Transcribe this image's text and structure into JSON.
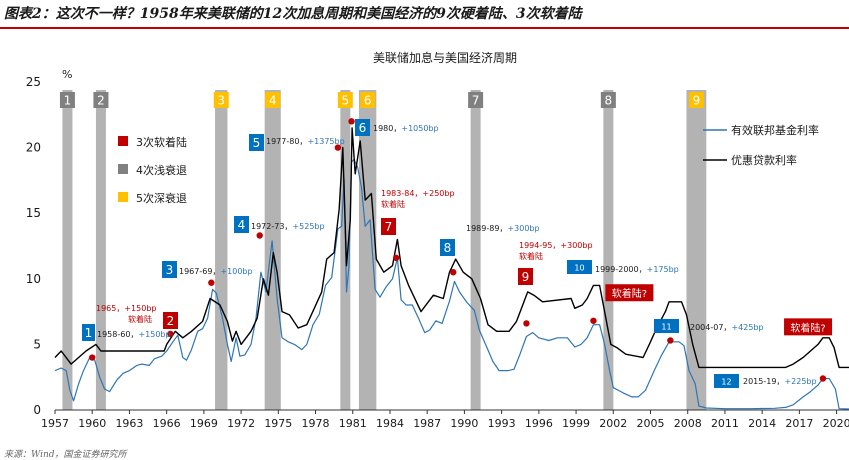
{
  "figure": {
    "title": "图表2：这次不一样？1958年来美联储的12次加息周期和美国经济的9次硬着陆、3次软着陆",
    "source": "来源：Wind，国金证券研究所"
  },
  "colors": {
    "fed_funds": "#2e75b6",
    "prime_rate": "#000000",
    "recession_shallow": "#a6a6a6",
    "recession_deep": "#ffc000",
    "hike_label_bg": "#0070c0",
    "soft_landing_bg": "#c00000",
    "soft_text": "#c00000",
    "bp_text": "#2e75b6",
    "title_rule": "#c00000"
  },
  "chart_data": {
    "type": "line",
    "title": "美联储加息与美国经济周期",
    "ylabel": "%",
    "ylim": [
      0,
      25
    ],
    "xlim": [
      1957,
      2021
    ],
    "yticks": [
      0,
      5,
      10,
      15,
      20,
      25
    ],
    "xticks": [
      1957,
      1960,
      1963,
      1966,
      1969,
      1972,
      1975,
      1978,
      1981,
      1984,
      1987,
      1990,
      1993,
      1996,
      1999,
      2002,
      2005,
      2008,
      2011,
      2014,
      2017,
      2020
    ],
    "grid": false,
    "legend_position": "right",
    "legend_box": [
      {
        "label": "3次软着陆",
        "color": "#c00000"
      },
      {
        "label": "4次浅衰退",
        "color": "#808080"
      },
      {
        "label": "5次深衰退",
        "color": "#ffc000"
      }
    ],
    "series": [
      {
        "name": "有效联邦基金利率",
        "color": "#2e75b6",
        "points": [
          [
            1957.0,
            3.0
          ],
          [
            1957.5,
            3.2
          ],
          [
            1957.9,
            3.0
          ],
          [
            1958.2,
            1.5
          ],
          [
            1958.5,
            0.7
          ],
          [
            1958.9,
            2.0
          ],
          [
            1959.3,
            3.0
          ],
          [
            1959.8,
            4.0
          ],
          [
            1960.2,
            3.8
          ],
          [
            1960.6,
            2.5
          ],
          [
            1961.0,
            1.6
          ],
          [
            1961.4,
            1.4
          ],
          [
            1962.0,
            2.3
          ],
          [
            1962.5,
            2.8
          ],
          [
            1963.0,
            3.0
          ],
          [
            1963.6,
            3.4
          ],
          [
            1964.0,
            3.5
          ],
          [
            1964.6,
            3.4
          ],
          [
            1965.0,
            3.9
          ],
          [
            1965.6,
            4.1
          ],
          [
            1966.0,
            4.5
          ],
          [
            1966.5,
            5.2
          ],
          [
            1966.9,
            5.7
          ],
          [
            1967.3,
            4.0
          ],
          [
            1967.6,
            3.8
          ],
          [
            1968.0,
            4.6
          ],
          [
            1968.5,
            6.0
          ],
          [
            1968.9,
            6.2
          ],
          [
            1969.3,
            7.0
          ],
          [
            1969.7,
            9.2
          ],
          [
            1970.0,
            8.9
          ],
          [
            1970.5,
            7.0
          ],
          [
            1970.9,
            5.0
          ],
          [
            1971.2,
            3.7
          ],
          [
            1971.6,
            5.5
          ],
          [
            1971.9,
            4.1
          ],
          [
            1972.3,
            4.2
          ],
          [
            1972.8,
            5.0
          ],
          [
            1973.2,
            7.0
          ],
          [
            1973.6,
            10.5
          ],
          [
            1974.0,
            9.0
          ],
          [
            1974.5,
            12.9
          ],
          [
            1974.9,
            8.5
          ],
          [
            1975.3,
            5.5
          ],
          [
            1975.8,
            5.2
          ],
          [
            1976.3,
            5.0
          ],
          [
            1976.9,
            4.6
          ],
          [
            1977.3,
            5.0
          ],
          [
            1977.8,
            6.5
          ],
          [
            1978.3,
            7.3
          ],
          [
            1978.8,
            9.5
          ],
          [
            1979.3,
            10.1
          ],
          [
            1979.8,
            13.8
          ],
          [
            1980.1,
            14.0
          ],
          [
            1980.3,
            17.6
          ],
          [
            1980.5,
            9.0
          ],
          [
            1980.7,
            11.0
          ],
          [
            1980.9,
            18.9
          ],
          [
            1981.1,
            19.1
          ],
          [
            1981.4,
            18.5
          ],
          [
            1981.7,
            17.0
          ],
          [
            1982.0,
            14.0
          ],
          [
            1982.4,
            14.5
          ],
          [
            1982.8,
            9.2
          ],
          [
            1983.2,
            8.6
          ],
          [
            1983.7,
            9.4
          ],
          [
            1984.2,
            10.0
          ],
          [
            1984.6,
            11.6
          ],
          [
            1984.9,
            8.4
          ],
          [
            1985.3,
            8.0
          ],
          [
            1985.8,
            8.0
          ],
          [
            1986.3,
            7.0
          ],
          [
            1986.8,
            5.9
          ],
          [
            1987.2,
            6.1
          ],
          [
            1987.7,
            6.8
          ],
          [
            1988.2,
            6.6
          ],
          [
            1988.8,
            8.3
          ],
          [
            1989.2,
            9.8
          ],
          [
            1989.6,
            9.0
          ],
          [
            1990.2,
            8.2
          ],
          [
            1990.8,
            7.6
          ],
          [
            1991.2,
            6.1
          ],
          [
            1991.8,
            4.8
          ],
          [
            1992.3,
            3.7
          ],
          [
            1992.8,
            3.0
          ],
          [
            1993.5,
            3.0
          ],
          [
            1994.0,
            3.1
          ],
          [
            1994.5,
            4.3
          ],
          [
            1995.0,
            5.6
          ],
          [
            1995.5,
            5.9
          ],
          [
            1996.0,
            5.5
          ],
          [
            1996.8,
            5.3
          ],
          [
            1997.5,
            5.5
          ],
          [
            1998.3,
            5.5
          ],
          [
            1998.9,
            4.8
          ],
          [
            1999.4,
            5.0
          ],
          [
            1999.9,
            5.5
          ],
          [
            2000.4,
            6.5
          ],
          [
            2000.9,
            6.5
          ],
          [
            2001.3,
            5.0
          ],
          [
            2001.7,
            3.0
          ],
          [
            2002.0,
            1.7
          ],
          [
            2002.8,
            1.3
          ],
          [
            2003.5,
            1.0
          ],
          [
            2004.0,
            1.0
          ],
          [
            2004.6,
            1.5
          ],
          [
            2005.3,
            3.0
          ],
          [
            2005.9,
            4.2
          ],
          [
            2006.5,
            5.2
          ],
          [
            2007.3,
            5.2
          ],
          [
            2007.7,
            4.9
          ],
          [
            2008.1,
            3.0
          ],
          [
            2008.6,
            2.0
          ],
          [
            2008.9,
            0.3
          ],
          [
            2009.5,
            0.15
          ],
          [
            2011.0,
            0.1
          ],
          [
            2013.0,
            0.1
          ],
          [
            2015.0,
            0.13
          ],
          [
            2015.9,
            0.2
          ],
          [
            2016.5,
            0.4
          ],
          [
            2017.3,
            1.0
          ],
          [
            2017.9,
            1.4
          ],
          [
            2018.5,
            1.9
          ],
          [
            2018.9,
            2.4
          ],
          [
            2019.4,
            2.4
          ],
          [
            2019.9,
            1.6
          ],
          [
            2020.2,
            0.1
          ],
          [
            2021.0,
            0.08
          ]
        ]
      },
      {
        "name": "优惠贷款利率",
        "color": "#000000",
        "points": [
          [
            1957.0,
            4.0
          ],
          [
            1957.5,
            4.5
          ],
          [
            1958.3,
            3.5
          ],
          [
            1959.5,
            4.5
          ],
          [
            1960.3,
            5.0
          ],
          [
            1960.7,
            4.5
          ],
          [
            1962.0,
            4.5
          ],
          [
            1965.8,
            4.5
          ],
          [
            1966.0,
            5.0
          ],
          [
            1966.7,
            6.0
          ],
          [
            1967.3,
            5.5
          ],
          [
            1968.0,
            6.0
          ],
          [
            1968.9,
            6.75
          ],
          [
            1969.5,
            8.5
          ],
          [
            1970.3,
            8.0
          ],
          [
            1970.9,
            6.75
          ],
          [
            1971.3,
            5.25
          ],
          [
            1971.6,
            6.0
          ],
          [
            1972.0,
            5.0
          ],
          [
            1972.8,
            6.0
          ],
          [
            1973.3,
            7.0
          ],
          [
            1973.8,
            10.0
          ],
          [
            1974.2,
            8.75
          ],
          [
            1974.6,
            12.0
          ],
          [
            1974.9,
            10.5
          ],
          [
            1975.3,
            7.5
          ],
          [
            1975.9,
            7.25
          ],
          [
            1976.6,
            6.25
          ],
          [
            1977.3,
            6.5
          ],
          [
            1977.9,
            7.75
          ],
          [
            1978.5,
            9.0
          ],
          [
            1978.9,
            11.5
          ],
          [
            1979.5,
            12.0
          ],
          [
            1979.9,
            15.25
          ],
          [
            1980.2,
            20.0
          ],
          [
            1980.5,
            11.0
          ],
          [
            1980.8,
            14.5
          ],
          [
            1980.95,
            21.5
          ],
          [
            1981.2,
            18.0
          ],
          [
            1981.6,
            20.5
          ],
          [
            1982.0,
            16.0
          ],
          [
            1982.5,
            16.5
          ],
          [
            1982.9,
            11.5
          ],
          [
            1983.5,
            10.5
          ],
          [
            1984.2,
            11.0
          ],
          [
            1984.6,
            13.0
          ],
          [
            1984.9,
            11.0
          ],
          [
            1985.5,
            9.5
          ],
          [
            1986.5,
            7.5
          ],
          [
            1987.5,
            8.75
          ],
          [
            1988.3,
            8.5
          ],
          [
            1988.8,
            10.5
          ],
          [
            1989.3,
            11.5
          ],
          [
            1989.9,
            10.5
          ],
          [
            1990.6,
            10.0
          ],
          [
            1991.3,
            8.5
          ],
          [
            1991.9,
            6.5
          ],
          [
            1992.6,
            6.0
          ],
          [
            1993.6,
            6.0
          ],
          [
            1994.2,
            6.75
          ],
          [
            1994.6,
            7.75
          ],
          [
            1995.1,
            9.0
          ],
          [
            1995.6,
            8.75
          ],
          [
            1996.3,
            8.25
          ],
          [
            1998.6,
            8.5
          ],
          [
            1998.9,
            7.75
          ],
          [
            1999.5,
            8.0
          ],
          [
            1999.9,
            8.5
          ],
          [
            2000.4,
            9.5
          ],
          [
            2000.9,
            9.5
          ],
          [
            2001.3,
            7.5
          ],
          [
            2001.8,
            5.0
          ],
          [
            2002.3,
            4.75
          ],
          [
            2003.0,
            4.25
          ],
          [
            2004.4,
            4.0
          ],
          [
            2004.9,
            5.0
          ],
          [
            2005.5,
            6.25
          ],
          [
            2006.2,
            7.5
          ],
          [
            2006.5,
            8.25
          ],
          [
            2007.5,
            8.25
          ],
          [
            2007.9,
            7.25
          ],
          [
            2008.4,
            5.0
          ],
          [
            2008.9,
            3.25
          ],
          [
            2010.0,
            3.25
          ],
          [
            2015.9,
            3.25
          ],
          [
            2016.5,
            3.5
          ],
          [
            2017.3,
            4.0
          ],
          [
            2017.9,
            4.5
          ],
          [
            2018.5,
            5.0
          ],
          [
            2018.9,
            5.5
          ],
          [
            2019.4,
            5.5
          ],
          [
            2019.8,
            4.75
          ],
          [
            2020.2,
            3.25
          ],
          [
            2021.0,
            3.25
          ]
        ]
      }
    ],
    "recessions": [
      {
        "label": "1",
        "start": 1957.6,
        "end": 1958.3,
        "type": "shallow"
      },
      {
        "label": "2",
        "start": 1960.3,
        "end": 1961.1,
        "type": "shallow"
      },
      {
        "label": "3",
        "start": 1969.9,
        "end": 1970.9,
        "type": "deep"
      },
      {
        "label": "4",
        "start": 1973.9,
        "end": 1975.2,
        "type": "deep"
      },
      {
        "label": "5",
        "start": 1980.0,
        "end": 1980.5,
        "type": "deep"
      },
      {
        "label": "6",
        "start": 1981.5,
        "end": 1982.9,
        "type": "deep"
      },
      {
        "label": "7",
        "start": 1990.5,
        "end": 1991.2,
        "type": "shallow"
      },
      {
        "label": "8",
        "start": 2001.2,
        "end": 2001.9,
        "type": "shallow"
      },
      {
        "label": "9",
        "start": 2007.9,
        "end": 2009.5,
        "type": "deep"
      }
    ],
    "hike_cycles": [
      {
        "num": "1",
        "period": "1958-60，",
        "bp": "+150bp",
        "num_bg": "blue",
        "text_color": "black"
      },
      {
        "num": "2",
        "period": "1965，+150bp",
        "bp": "软着陆",
        "num_bg": "red",
        "text_color": "red"
      },
      {
        "num": "3",
        "period": "1967-69，",
        "bp": "+100bp",
        "num_bg": "blue",
        "text_color": "black"
      },
      {
        "num": "4",
        "period": "1972-73，",
        "bp": "+525bp",
        "num_bg": "blue",
        "text_color": "black"
      },
      {
        "num": "5",
        "period": "1977-80，",
        "bp": "+1375bp",
        "num_bg": "blue",
        "text_color": "black"
      },
      {
        "num": "6",
        "period": "1980，",
        "bp": "+1050bp",
        "num_bg": "blue",
        "text_color": "black"
      },
      {
        "num": "7",
        "period": "1983-84，+250bp",
        "bp": "软着陆",
        "num_bg": "red",
        "text_color": "red"
      },
      {
        "num": "8",
        "period": "1989-89，",
        "bp": "+300bp",
        "num_bg": "blue",
        "text_color": "black"
      },
      {
        "num": "9",
        "period": "1994-95，+300bp",
        "bp": "软着陆",
        "num_bg": "red",
        "text_color": "red"
      },
      {
        "num": "10",
        "period": "1999-2000，",
        "bp": "+175bp",
        "num_bg": "blue",
        "text_color": "black"
      },
      {
        "num": "11",
        "period": "2004-07，",
        "bp": "+425bp",
        "num_bg": "blue",
        "text_color": "black"
      },
      {
        "num": "12",
        "period": "2015-19，",
        "bp": "+225bp",
        "num_bg": "blue",
        "text_color": "black"
      }
    ],
    "annotations": [
      {
        "label": "软着陆?",
        "x": 2003.3,
        "y": 8.9
      },
      {
        "label": "软着陆?",
        "x": 2017.7,
        "y": 6.3
      }
    ],
    "peak_points": [
      [
        1960.0,
        4.0
      ],
      [
        1966.3,
        5.8
      ],
      [
        1969.6,
        9.7
      ],
      [
        1973.5,
        13.3
      ],
      [
        1979.8,
        20.0
      ],
      [
        1980.9,
        22.0
      ],
      [
        1984.5,
        11.6
      ],
      [
        1989.1,
        10.5
      ],
      [
        1995.0,
        6.6
      ],
      [
        2000.4,
        6.8
      ],
      [
        2006.6,
        5.3
      ],
      [
        2018.9,
        2.4
      ]
    ]
  }
}
